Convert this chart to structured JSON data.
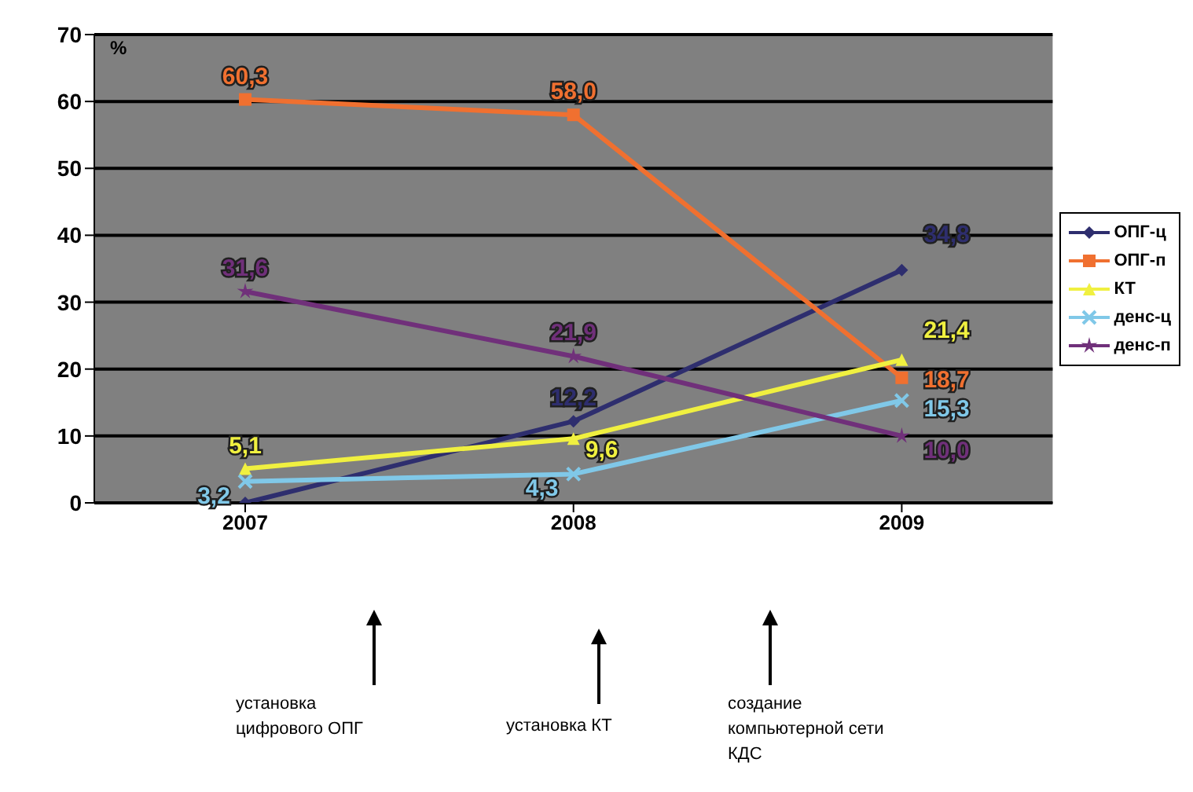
{
  "chart_data": {
    "type": "line",
    "ylabel": "%",
    "categories": [
      "2007",
      "2008",
      "2009"
    ],
    "ylim": [
      0,
      70
    ],
    "yticks": [
      0,
      10,
      20,
      30,
      40,
      50,
      60,
      70
    ],
    "grid": "y",
    "legend": "right",
    "series": [
      {
        "name": "ОПГ-ц",
        "color": "#2e2e6e",
        "marker": "diamond",
        "values": [
          0,
          12.2,
          34.8
        ],
        "value_labels": [
          null,
          "12,2",
          "34,8"
        ]
      },
      {
        "name": "ОПГ-п",
        "color": "#f07030",
        "marker": "square",
        "values": [
          60.3,
          58.0,
          18.7
        ],
        "value_labels": [
          "60,3",
          "58,0",
          "18,7"
        ]
      },
      {
        "name": "КТ",
        "color": "#f0f040",
        "marker": "triangle",
        "values": [
          5.1,
          9.6,
          21.4
        ],
        "value_labels": [
          "5,1",
          "9,6",
          "21,4"
        ]
      },
      {
        "name": "денс-ц",
        "color": "#80c8e8",
        "marker": "cross",
        "values": [
          3.2,
          4.3,
          15.3
        ],
        "value_labels": [
          "3,2",
          "4,3",
          "15,3"
        ]
      },
      {
        "name": "денс-п",
        "color": "#70307a",
        "marker": "star",
        "values": [
          31.6,
          21.9,
          10.0
        ],
        "value_labels": [
          "31,6",
          "21,9",
          "10,0"
        ]
      }
    ],
    "annotations": [
      "установка цифрового ОПГ",
      "установка КТ",
      "создание компьютерной сети КДС"
    ]
  }
}
